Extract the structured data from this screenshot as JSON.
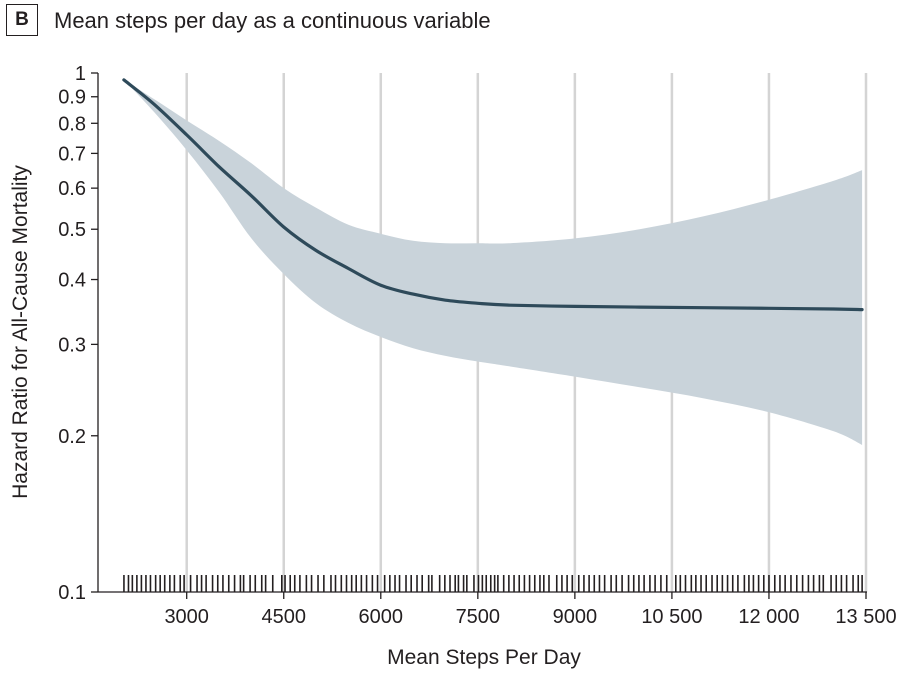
{
  "header": {
    "panel_label": "B",
    "title": "Mean steps per day as a continuous variable"
  },
  "chart_data": {
    "type": "line",
    "title": "Mean steps per day as a continuous variable",
    "xlabel": "Mean Steps Per Day",
    "ylabel": "Hazard Ratio for All-Cause Mortality",
    "x_scale": "linear",
    "y_scale": "log",
    "xlim": [
      1700,
      13500
    ],
    "ylim": [
      0.1,
      1
    ],
    "grid": "vertical",
    "x_ticks": [
      3000,
      4500,
      6000,
      7500,
      9000,
      10500,
      12000,
      13500
    ],
    "x_tick_labels": [
      "3000",
      "4500",
      "6000",
      "7500",
      "9000",
      "10 500",
      "12 000",
      "13 500"
    ],
    "y_ticks": [
      0.1,
      0.2,
      0.3,
      0.4,
      0.5,
      0.6,
      0.7,
      0.8,
      0.9,
      1
    ],
    "y_tick_labels": [
      "0.1",
      "0.2",
      "0.3",
      "0.4",
      "0.5",
      "0.6",
      "0.7",
      "0.8",
      "0.9",
      "1"
    ],
    "x": [
      2030,
      2500,
      3000,
      3500,
      4000,
      4500,
      5000,
      5500,
      6000,
      6500,
      7000,
      7500,
      8000,
      9000,
      10000,
      11000,
      12000,
      13000,
      13440
    ],
    "hr": [
      0.97,
      0.87,
      0.76,
      0.66,
      0.58,
      0.505,
      0.455,
      0.42,
      0.39,
      0.375,
      0.365,
      0.36,
      0.357,
      0.355,
      0.354,
      0.353,
      0.352,
      0.351,
      0.35
    ],
    "ci_lower": [
      0.97,
      0.84,
      0.71,
      0.59,
      0.48,
      0.41,
      0.36,
      0.33,
      0.31,
      0.295,
      0.285,
      0.278,
      0.272,
      0.26,
      0.248,
      0.236,
      0.222,
      0.204,
      0.192
    ],
    "ci_upper": [
      0.97,
      0.89,
      0.81,
      0.74,
      0.67,
      0.6,
      0.55,
      0.51,
      0.49,
      0.475,
      0.47,
      0.47,
      0.47,
      0.48,
      0.5,
      0.53,
      0.57,
      0.62,
      0.65
    ],
    "rug_x": [
      2030,
      2100,
      2160,
      2230,
      2300,
      2370,
      2440,
      2520,
      2590,
      2660,
      2740,
      2810,
      2900,
      2960,
      3060,
      3160,
      3230,
      3300,
      3400,
      3480,
      3560,
      3650,
      3740,
      3830,
      3880,
      3980,
      4060,
      4160,
      4220,
      4330,
      4470,
      4520,
      4600,
      4670,
      4750,
      4850,
      4930,
      5030,
      5120,
      5230,
      5300,
      5390,
      5470,
      5550,
      5620,
      5700,
      5780,
      5870,
      5950,
      6060,
      6140,
      6220,
      6290,
      6390,
      6470,
      6560,
      6640,
      6740,
      6790,
      6910,
      6990,
      7070,
      7150,
      7200,
      7280,
      7330,
      7440,
      7510,
      7570,
      7630,
      7700,
      7760,
      7810,
      7900,
      7980,
      8060,
      8140,
      8220,
      8300,
      8380,
      8460,
      8520,
      8600,
      8720,
      8800,
      8880,
      8960,
      9060,
      9140,
      9220,
      9300,
      9380,
      9460,
      9560,
      9640,
      9730,
      9830,
      9910,
      9990,
      10070,
      10160,
      10240,
      10330,
      10420,
      10560,
      10630,
      10710,
      10800,
      10870,
      10950,
      11030,
      11120,
      11200,
      11280,
      11360,
      11440,
      11520,
      11620,
      11690,
      11760,
      11840,
      11920,
      12000,
      12090,
      12170,
      12250,
      12340,
      12430,
      12520,
      12610,
      12690,
      12780,
      12840,
      12960,
      13040,
      13120,
      13200,
      13300,
      13380,
      13440
    ],
    "colors": {
      "line": "#2e4a5a",
      "ci_band": "#c9d3da",
      "grid": "#d4d4d4",
      "axis": "#231f20"
    }
  }
}
